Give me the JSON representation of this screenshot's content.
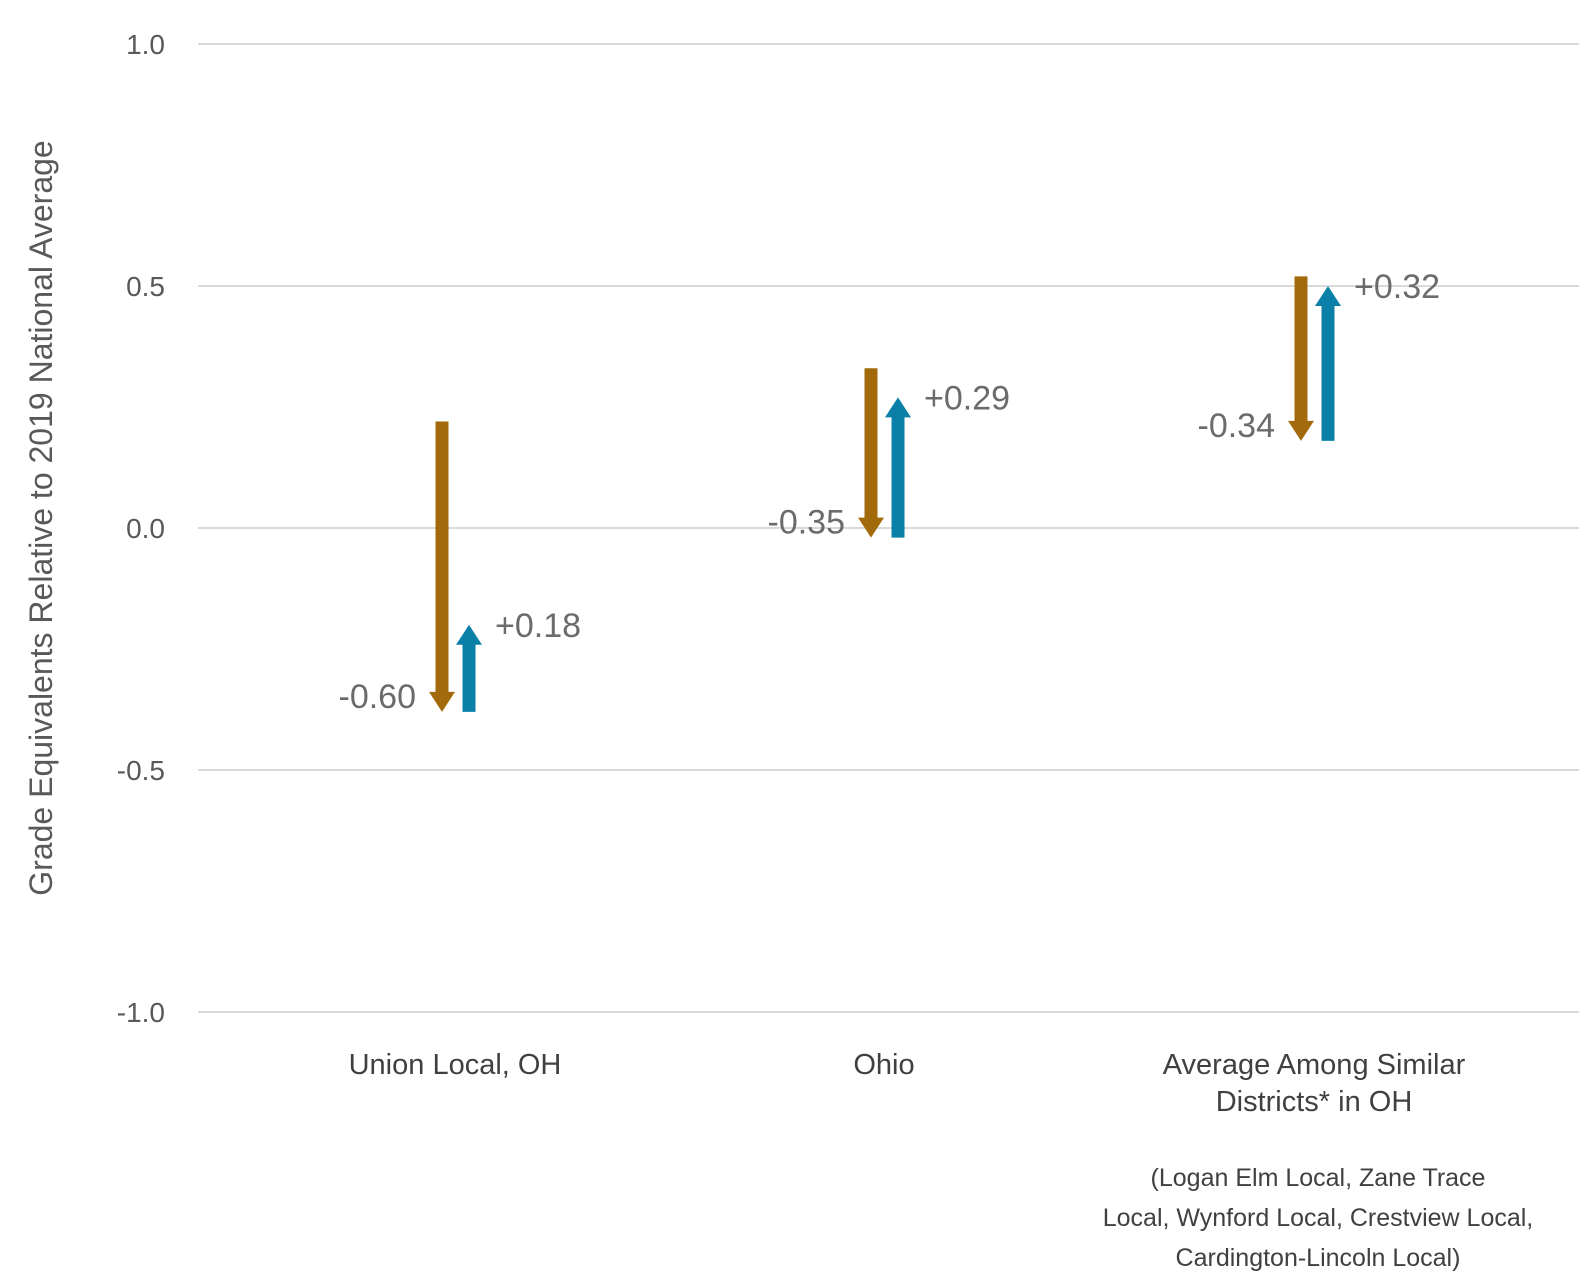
{
  "chart_data": {
    "type": "arrow",
    "ylabel": "Grade Equivalents Relative to 2019 National Average",
    "ylim": [
      -1.0,
      1.0
    ],
    "yticks": [
      "1.0",
      "0.5",
      "0.0",
      "-0.5",
      "-1.0"
    ],
    "grid": true,
    "colors": {
      "decline": "#A36A0B",
      "recovery": "#0A80A8",
      "grid": "#D9D9D9"
    },
    "categories": [
      {
        "label_lines": [
          "Union Local, OH"
        ],
        "note_lines": [],
        "decline": {
          "start": 0.22,
          "end": -0.38,
          "label": "-0.60"
        },
        "recovery": {
          "start": -0.38,
          "end": -0.2,
          "label": "+0.18"
        }
      },
      {
        "label_lines": [
          "Ohio"
        ],
        "note_lines": [],
        "decline": {
          "start": 0.33,
          "end": -0.02,
          "label": "-0.35"
        },
        "recovery": {
          "start": -0.02,
          "end": 0.27,
          "label": "+0.29"
        }
      },
      {
        "label_lines": [
          "Average Among Similar",
          "Districts* in OH"
        ],
        "note_lines": [
          "(Logan Elm Local, Zane Trace",
          "Local, Wynford Local, Crestview Local,",
          "Cardington-Lincoln Local)"
        ],
        "decline": {
          "start": 0.52,
          "end": 0.18,
          "label": "-0.34"
        },
        "recovery": {
          "start": 0.18,
          "end": 0.5,
          "label": "+0.32"
        }
      }
    ]
  }
}
